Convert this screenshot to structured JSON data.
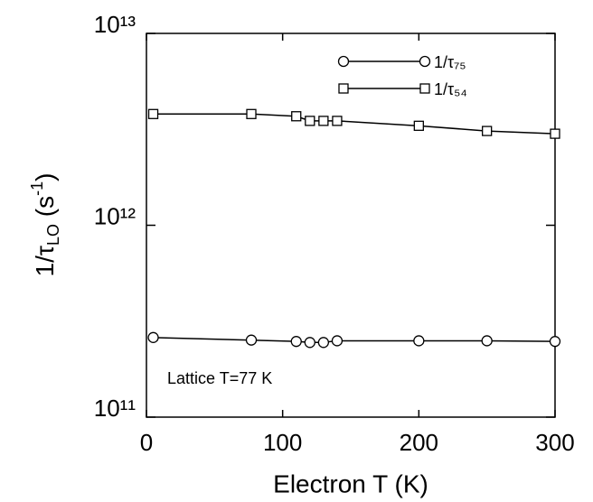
{
  "chart_data": {
    "type": "line",
    "x_label": "Electron T (K)",
    "y_label": [
      "1/τ",
      "LO",
      " (s",
      "-1",
      ")"
    ],
    "annotation": "Lattice T=77 K",
    "x": [
      5,
      77,
      110,
      120,
      130,
      140,
      200,
      250,
      300
    ],
    "series": [
      {
        "name": "1/τ₇₅",
        "marker": "circle",
        "color": "#000000",
        "values": [
          260000000000,
          252000000000,
          248000000000,
          245000000000,
          245000000000,
          250000000000,
          250000000000,
          250000000000,
          248000000000
        ]
      },
      {
        "name": "1/τ₅₄",
        "marker": "square",
        "color": "#000000",
        "values": [
          3800000000000,
          3800000000000,
          3700000000000,
          3500000000000,
          3500000000000,
          3500000000000,
          3300000000000,
          3100000000000,
          3000000000000
        ]
      }
    ],
    "xlim": [
      0,
      300
    ],
    "xticks": [
      0,
      100,
      200,
      300
    ],
    "ylim": [
      100000000000,
      10000000000000
    ],
    "log_y": true,
    "yticks": [
      {
        "value": 100000000000,
        "label": "10¹¹"
      },
      {
        "value": 1000000000000,
        "label": "10¹²"
      },
      {
        "value": 10000000000000,
        "label": "10¹³"
      }
    ],
    "legend": "top-right"
  }
}
